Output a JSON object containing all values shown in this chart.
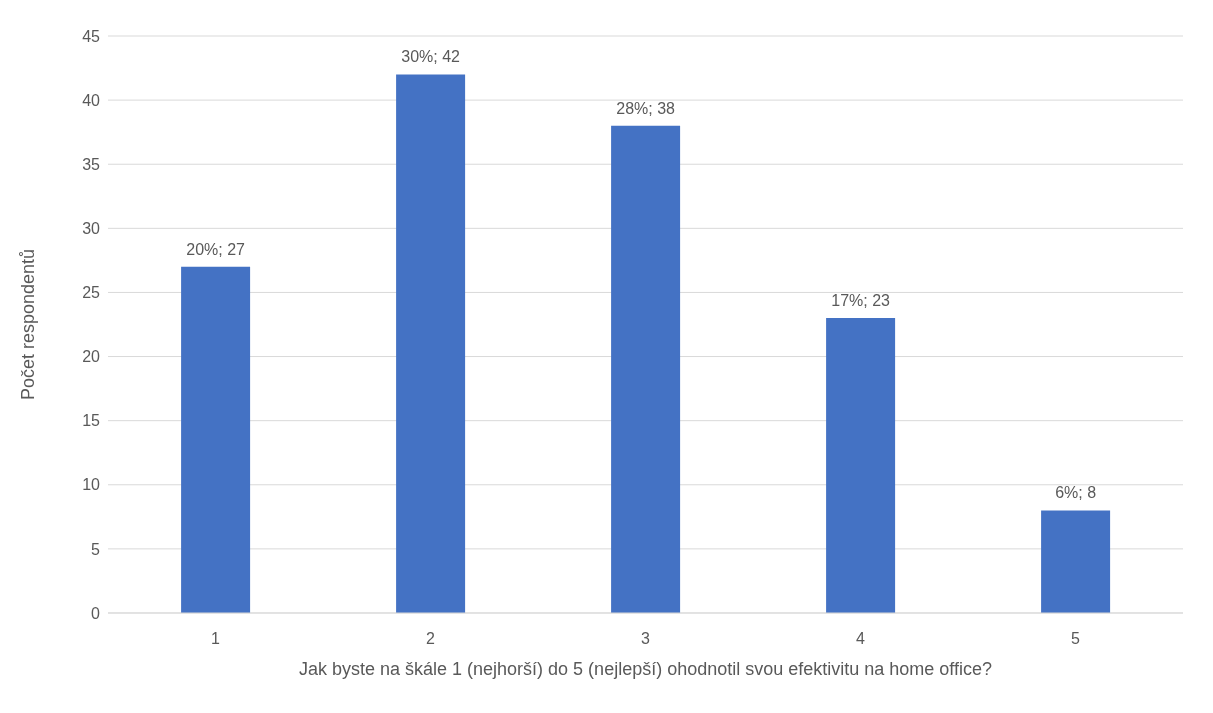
{
  "chart_data": {
    "type": "bar",
    "xlabel": "Jak byste na škále 1 (nejhorší) do 5 (nejlepší) ohodnotil svou efektivitu na home office?",
    "ylabel": "Počet respondentů",
    "categories": [
      "1",
      "2",
      "3",
      "4",
      "5"
    ],
    "values": [
      27,
      42,
      38,
      23,
      8
    ],
    "value_labels": [
      "20%; 27",
      "30%; 42",
      "28%; 38",
      "17%; 23",
      "6%; 8"
    ],
    "color": "#4472c4",
    "ylim": [
      0,
      45
    ],
    "yticks": [
      0,
      5,
      10,
      15,
      20,
      25,
      30,
      35,
      40,
      45
    ],
    "grid": "y",
    "legend": false
  }
}
